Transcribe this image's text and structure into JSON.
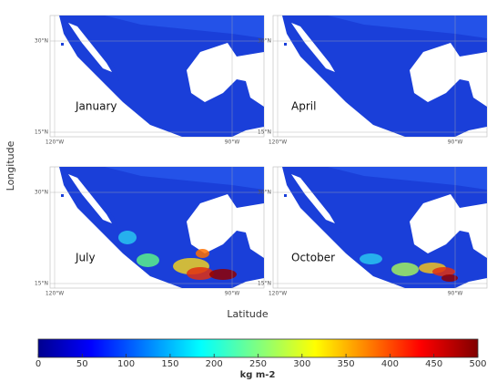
{
  "panels": [
    {
      "label": "January"
    },
    {
      "label": "April"
    },
    {
      "label": "July"
    },
    {
      "label": "October"
    }
  ],
  "lat_ticks": [
    "30°N",
    "15°N"
  ],
  "lon_ticks": [
    "120°W",
    "90°W"
  ],
  "x_label": "Latitude",
  "y_label": "Longitude",
  "colorbar": {
    "lim": [
      0,
      500
    ],
    "ticks": [
      0,
      50,
      100,
      150,
      200,
      250,
      300,
      350,
      400,
      450,
      500
    ],
    "label": "kg m-2"
  }
}
